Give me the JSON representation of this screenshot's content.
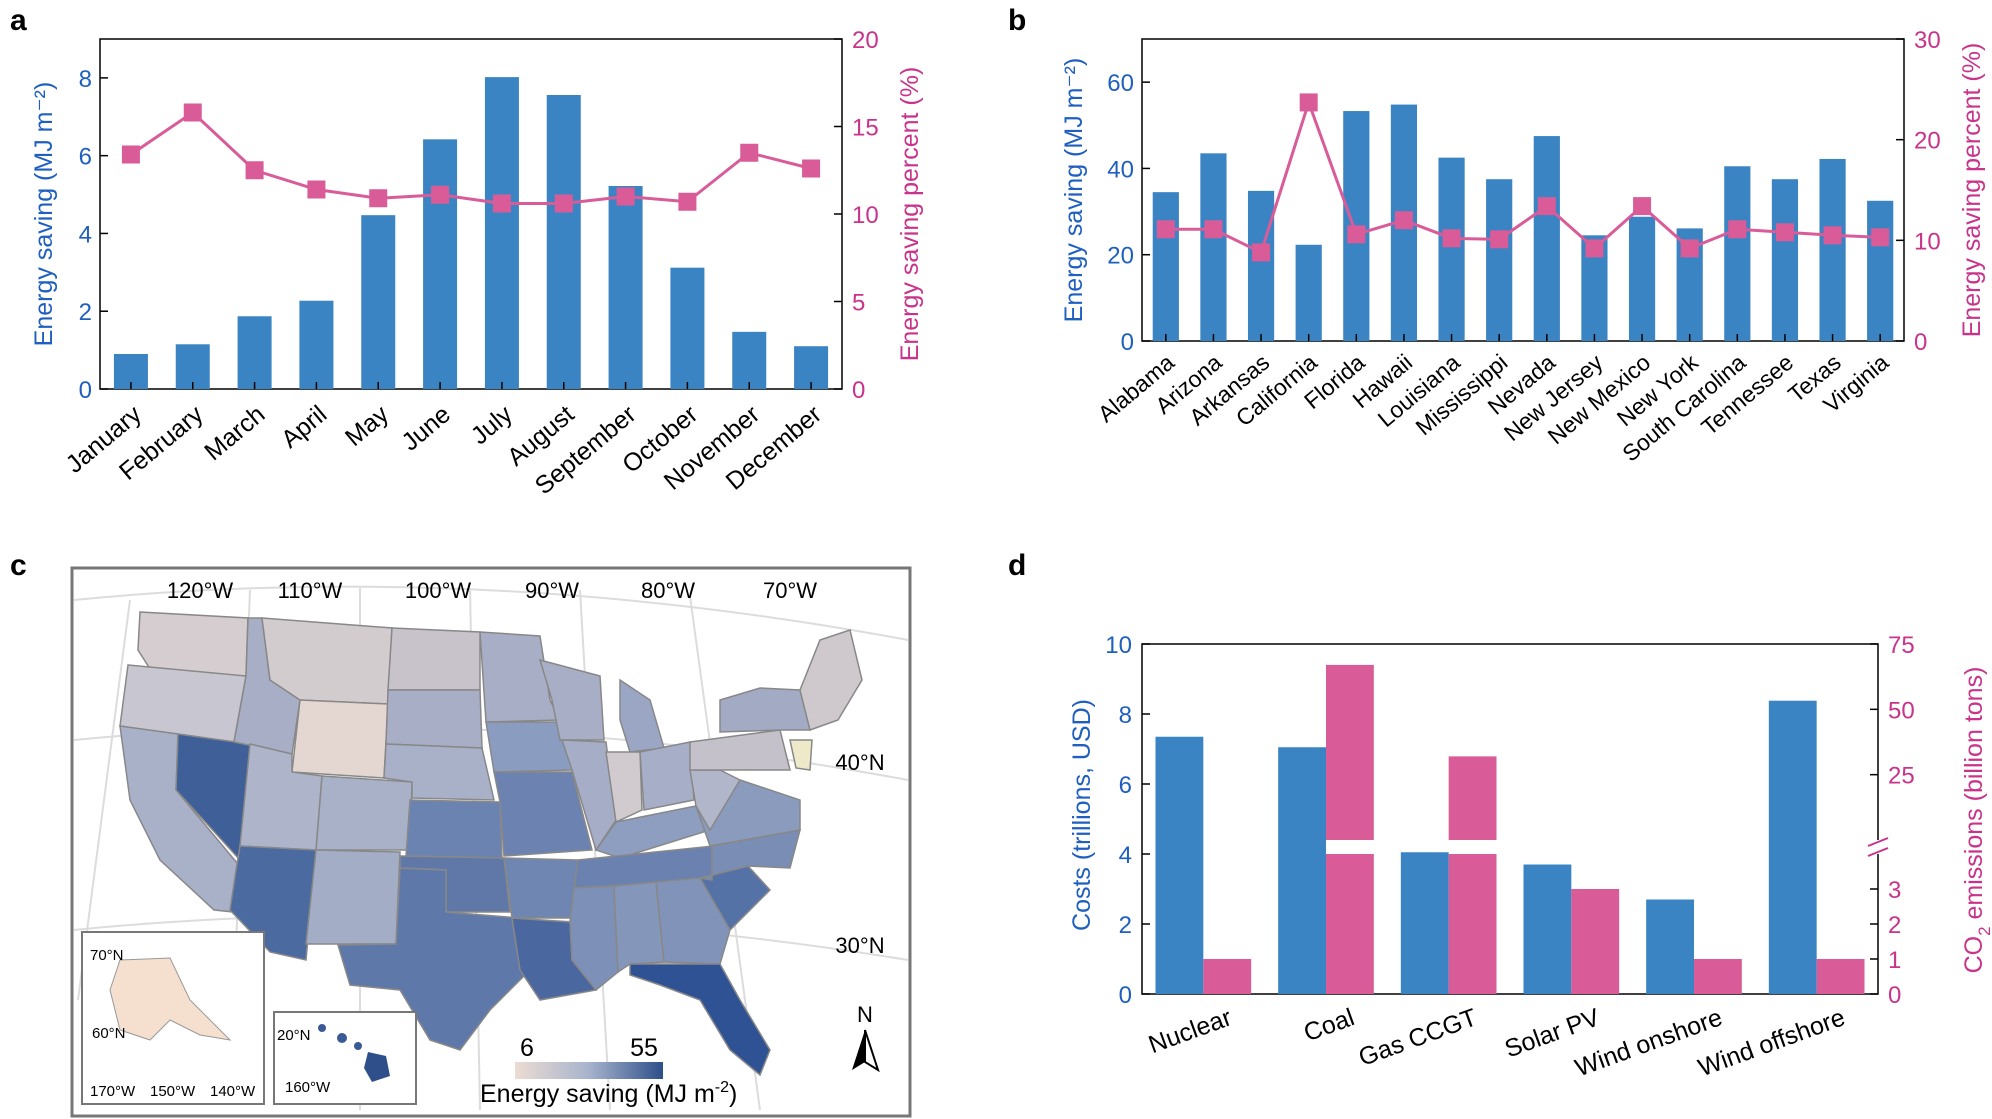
{
  "colors": {
    "bar": "#3a84c4",
    "line": "#d95b98",
    "axis_left": "#1f5fbf",
    "axis_right": "#c9338a",
    "map_low": "#e9dcd6",
    "map_high": "#2e4f8a"
  },
  "panel_labels": [
    "a",
    "b",
    "c",
    "d"
  ],
  "chart_data": [
    {
      "type": "bar",
      "panel": "a",
      "categories": [
        "January",
        "February",
        "March",
        "April",
        "May",
        "June",
        "July",
        "August",
        "September",
        "October",
        "November",
        "December"
      ],
      "series": [
        {
          "name": "Energy saving",
          "axis": "left",
          "type": "bar",
          "values": [
            0.9,
            1.15,
            1.87,
            2.27,
            4.47,
            6.42,
            8.02,
            7.56,
            5.22,
            3.12,
            1.47,
            1.1
          ]
        },
        {
          "name": "Energy saving percent",
          "axis": "right",
          "type": "line",
          "values": [
            13.4,
            15.8,
            12.5,
            11.4,
            10.9,
            11.1,
            10.6,
            10.6,
            11.0,
            10.7,
            13.5,
            12.6
          ]
        }
      ],
      "ylabel": "Energy saving (MJ m⁻²)",
      "ylabel2": "Energy saving percent (%)",
      "ylim": [
        0,
        9
      ],
      "yticks": [
        "0",
        "2",
        "4",
        "6",
        "8"
      ],
      "ylim2": [
        0,
        20
      ],
      "yticks2": [
        "0",
        "5",
        "10",
        "15",
        "20"
      ]
    },
    {
      "type": "bar",
      "panel": "b",
      "categories": [
        "Alabama",
        "Arizona",
        "Arkansas",
        "California",
        "Florida",
        "Hawaii",
        "Louisiana",
        "Mississippi",
        "Nevada",
        "New Jersey",
        "New Mexico",
        "New York",
        "South Carolina",
        "Tennessee",
        "Texas",
        "Virginia"
      ],
      "series": [
        {
          "name": "Energy saving",
          "axis": "left",
          "type": "bar",
          "values": [
            34.5,
            43.5,
            34.8,
            22.3,
            53.3,
            54.8,
            42.5,
            37.5,
            47.5,
            24.5,
            28.8,
            26.1,
            40.5,
            37.5,
            42.2,
            32.5
          ]
        },
        {
          "name": "Energy saving percent",
          "axis": "right",
          "type": "line",
          "values": [
            11.1,
            11.1,
            8.8,
            23.7,
            10.6,
            12.0,
            10.2,
            10.1,
            13.4,
            9.2,
            13.4,
            9.2,
            11.1,
            10.8,
            10.5,
            10.3
          ]
        }
      ],
      "ylabel": "Energy saving (MJ m⁻²)",
      "ylabel2": "Energy saving percent (%)",
      "ylim": [
        0,
        70
      ],
      "yticks": [
        "0",
        "20",
        "40",
        "60"
      ],
      "ylim2": [
        0,
        30
      ],
      "yticks2": [
        "0",
        "10",
        "20",
        "30"
      ]
    },
    {
      "type": "bar",
      "panel": "d",
      "categories": [
        "Nuclear",
        "Coal",
        "Gas CCGT",
        "Solar PV",
        "Wind onshore",
        "Wind offshore"
      ],
      "series": [
        {
          "name": "Costs",
          "axis": "left",
          "type": "bar",
          "values": [
            7.35,
            7.05,
            4.05,
            3.7,
            2.7,
            8.38
          ]
        },
        {
          "name": "CO2 emissions",
          "axis": "right",
          "type": "bar",
          "values": [
            1,
            67,
            32,
            3,
            1,
            1
          ]
        }
      ],
      "ylabel": "Costs (trillions, USD)",
      "ylabel2_main": "CO",
      "ylabel2_sub": "2",
      "ylabel2_rest": " emissions (billion tons)",
      "ylim": [
        0,
        10
      ],
      "yticks": [
        "0",
        "2",
        "4",
        "6",
        "8",
        "10"
      ],
      "yticks2_low": [
        "0",
        "1",
        "2",
        "3"
      ],
      "yticks2_high": [
        "25",
        "50",
        "75"
      ],
      "axis_break": "between 4 and 10"
    }
  ],
  "map": {
    "panel": "c",
    "lon_labels": [
      "120°W",
      "110°W",
      "100°W",
      "90°W",
      "80°W",
      "70°W"
    ],
    "lat_labels": [
      "40°N",
      "30°N"
    ],
    "alaska_labels": [
      "70°N",
      "60°N",
      "170°W",
      "150°W",
      "140°W"
    ],
    "hawaii_labels": [
      "20°N",
      "160°W"
    ],
    "legend_min": "6",
    "legend_max": "55",
    "legend_title": "Energy saving (MJ m",
    "legend_title_sup": "-2",
    "legend_title_end": ")",
    "north": "N"
  }
}
